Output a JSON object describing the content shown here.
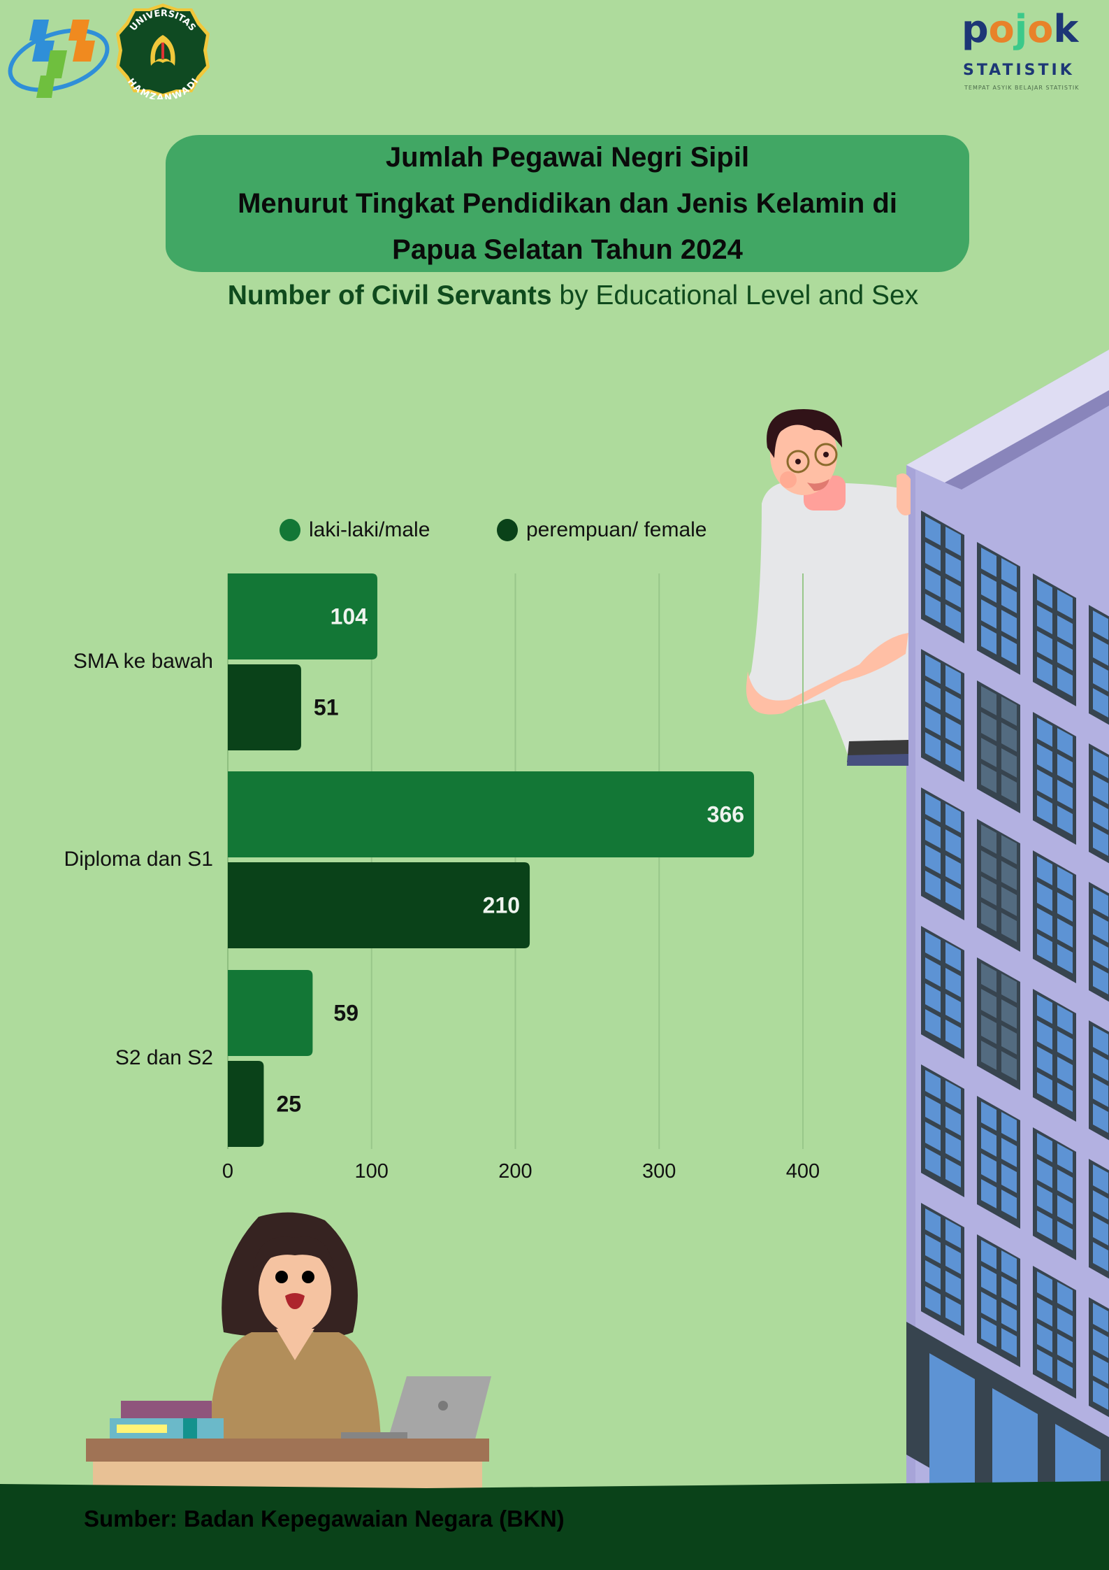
{
  "logos": {
    "left": [
      "bps-logo",
      "universitas-hamzanwadi-logo"
    ],
    "hamzanwadi_text_top": "UNIVERSITAS",
    "hamzanwadi_text_bottom": "HAMZANWADI",
    "pojok_word": [
      "p",
      "o",
      "j",
      "o",
      "k"
    ],
    "pojok_line2": "STATISTIK",
    "pojok_tagline": "TEMPAT ASYIK BELAJAR STATISTIK"
  },
  "title": {
    "line1": "Jumlah Pegawai Negri Sipil",
    "line2": "Menurut Tingkat Pendidikan dan Jenis Kelamin di",
    "line3": "Papua Selatan Tahun 2024",
    "subtitle_bold": "Number of Civil Servants",
    "subtitle_rest": " by Educational Level and Sex"
  },
  "colors": {
    "background": "#aedb9c",
    "title_box": "#41a764",
    "male": "#137736",
    "female": "#0a4219",
    "footer": "#0a4219",
    "grid": "#98c78a"
  },
  "chart_data": {
    "type": "bar",
    "orientation": "horizontal",
    "title": "Jumlah Pegawai Negri Sipil Menurut Tingkat Pendidikan dan Jenis Kelamin di Papua Selatan Tahun 2024",
    "categories": [
      "SMA ke bawah",
      "Diploma dan S1",
      "S2 dan S2"
    ],
    "series": [
      {
        "name": "laki-laki/male",
        "color": "#137736",
        "values": [
          104,
          366,
          59
        ]
      },
      {
        "name": "perempuan/ female",
        "color": "#0a4219",
        "values": [
          51,
          210,
          25
        ]
      }
    ],
    "xlim": [
      0,
      400
    ],
    "xticks": [
      0,
      100,
      200,
      300,
      400
    ],
    "xlabel": "",
    "ylabel": "",
    "grid": true,
    "legend_position": "top"
  },
  "footer": {
    "source": "Sumber: Badan Kepegawaian Negara (BKN)"
  }
}
